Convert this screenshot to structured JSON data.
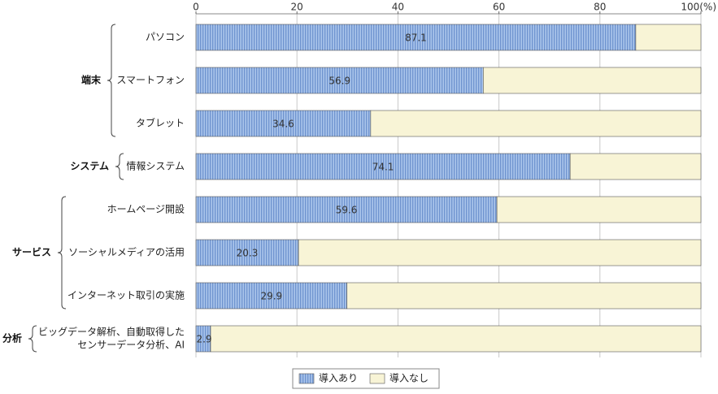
{
  "chart_data": {
    "type": "bar",
    "orientation": "horizontal",
    "stacked": true,
    "xlim": [
      0,
      100
    ],
    "xticks": [
      0,
      20,
      40,
      60,
      80,
      100
    ],
    "unit_label": "(%)",
    "grid": true,
    "legend_position": "bottom",
    "groups": [
      {
        "label": "端末",
        "categories": [
          "パソコン",
          "スマートフォン",
          "タブレット"
        ]
      },
      {
        "label": "システム",
        "categories": [
          "情報システム"
        ]
      },
      {
        "label": "サービス",
        "categories": [
          "ホームページ開設",
          "ソーシャルメディアの活用",
          "インターネット取引の実施"
        ]
      },
      {
        "label": "分析",
        "categories": [
          "ビッグデータ解析、自動取得した\nセンサーデータ分析、AI"
        ]
      }
    ],
    "categories": [
      "パソコン",
      "スマートフォン",
      "タブレット",
      "情報システム",
      "ホームページ開設",
      "ソーシャルメディアの活用",
      "インターネット取引の実施",
      "ビッグデータ解析、自動取得した\nセンサーデータ分析、AI"
    ],
    "series": [
      {
        "name": "導入あり",
        "values": [
          87.1,
          56.9,
          34.6,
          74.1,
          59.6,
          20.3,
          29.9,
          2.9
        ],
        "color": "#a9c4ea"
      },
      {
        "name": "導入なし",
        "values": [
          12.9,
          43.1,
          65.4,
          25.9,
          40.4,
          79.7,
          70.1,
          97.1
        ],
        "color": "#f8f4d6"
      }
    ],
    "data_labels": [
      "87.1",
      "56.9",
      "34.6",
      "74.1",
      "59.6",
      "20.3",
      "29.9",
      "2.9"
    ]
  }
}
